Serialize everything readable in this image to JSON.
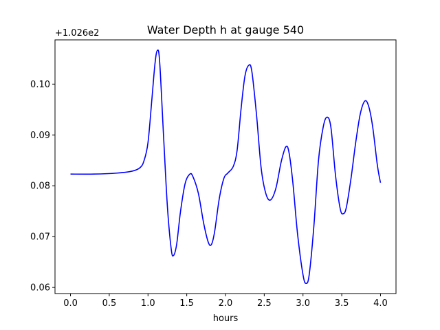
{
  "chart_data": {
    "type": "line",
    "title": "Water Depth h at gauge 540",
    "xlabel": "hours",
    "ylabel": "",
    "offset_text": "+1.026e2",
    "xlim": [
      -0.2,
      4.2
    ],
    "ylim": [
      0.0588,
      0.1087
    ],
    "x_ticks": [
      0.0,
      0.5,
      1.0,
      1.5,
      2.0,
      2.5,
      3.0,
      3.5,
      4.0
    ],
    "x_tick_labels": [
      "0.0",
      "0.5",
      "1.0",
      "1.5",
      "2.0",
      "2.5",
      "3.0",
      "3.5",
      "4.0"
    ],
    "y_ticks": [
      0.06,
      0.07,
      0.08,
      0.09,
      0.1
    ],
    "y_tick_labels": [
      "0.06",
      "0.07",
      "0.08",
      "0.09",
      "0.10"
    ],
    "grid": false,
    "series": [
      {
        "color": "#0000ff",
        "x": [
          0.0,
          0.3,
          0.6,
          0.8,
          0.9,
          0.95,
          1.0,
          1.05,
          1.09,
          1.12,
          1.15,
          1.2,
          1.25,
          1.3,
          1.33,
          1.37,
          1.42,
          1.48,
          1.54,
          1.58,
          1.65,
          1.72,
          1.78,
          1.82,
          1.86,
          1.92,
          1.98,
          2.03,
          2.1,
          2.15,
          2.2,
          2.25,
          2.3,
          2.34,
          2.4,
          2.46,
          2.52,
          2.58,
          2.65,
          2.72,
          2.78,
          2.82,
          2.87,
          2.93,
          3.0,
          3.04,
          3.08,
          3.14,
          3.2,
          3.26,
          3.31,
          3.36,
          3.42,
          3.48,
          3.52,
          3.56,
          3.62,
          3.68,
          3.74,
          3.8,
          3.85,
          3.9,
          3.96,
          4.0
        ],
        "y": [
          0.0823,
          0.0823,
          0.0825,
          0.0829,
          0.0836,
          0.085,
          0.0885,
          0.097,
          0.104,
          0.1066,
          0.1045,
          0.09,
          0.076,
          0.0675,
          0.0663,
          0.0685,
          0.075,
          0.0805,
          0.0823,
          0.0818,
          0.0785,
          0.0725,
          0.0688,
          0.0685,
          0.071,
          0.0775,
          0.0815,
          0.0825,
          0.0838,
          0.087,
          0.095,
          0.1015,
          0.1037,
          0.1025,
          0.094,
          0.0835,
          0.0785,
          0.0772,
          0.0795,
          0.0848,
          0.0877,
          0.0865,
          0.0805,
          0.0705,
          0.0625,
          0.0608,
          0.0625,
          0.072,
          0.085,
          0.0915,
          0.0935,
          0.0915,
          0.082,
          0.0755,
          0.0745,
          0.0758,
          0.0815,
          0.0885,
          0.0942,
          0.0967,
          0.0955,
          0.0915,
          0.084,
          0.0806
        ]
      }
    ]
  }
}
